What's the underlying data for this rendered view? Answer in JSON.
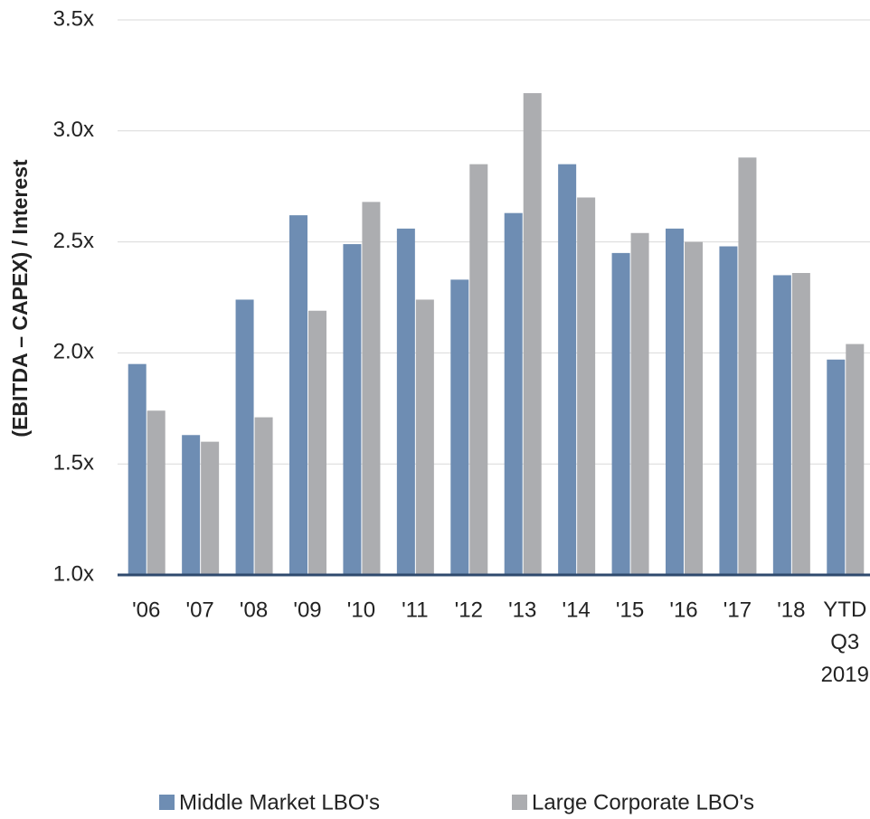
{
  "chart_data": {
    "type": "bar",
    "y_label": "(EBITDA – CAPEX) / Interest",
    "categories": [
      "'06",
      "'07",
      "'08",
      "'09",
      "'10",
      "'11",
      "'12",
      "'13",
      "'14",
      "'15",
      "'16",
      "'17",
      "'18",
      "YTD Q3 2019"
    ],
    "series": [
      {
        "name": "Middle Market LBO's",
        "color": "#6e8db3",
        "values": [
          1.95,
          1.63,
          2.24,
          2.62,
          2.49,
          2.56,
          2.33,
          2.63,
          2.85,
          2.45,
          2.56,
          2.48,
          2.35,
          1.97
        ]
      },
      {
        "name": "Large Corporate LBO's",
        "color": "#acadb0",
        "values": [
          1.74,
          1.6,
          1.71,
          2.19,
          2.68,
          2.24,
          2.85,
          3.17,
          2.7,
          2.54,
          2.5,
          2.88,
          2.36,
          2.04
        ]
      }
    ],
    "ylim": [
      1.0,
      3.5
    ],
    "yticks": [
      {
        "value": 1.0,
        "label": "1.0x"
      },
      {
        "value": 1.5,
        "label": "1.5x"
      },
      {
        "value": 2.0,
        "label": "2.0x"
      },
      {
        "value": 2.5,
        "label": "2.5x"
      },
      {
        "value": 3.0,
        "label": "3.0x"
      },
      {
        "value": 3.5,
        "label": "3.5x"
      }
    ],
    "grid": true,
    "legend": "bottom"
  }
}
